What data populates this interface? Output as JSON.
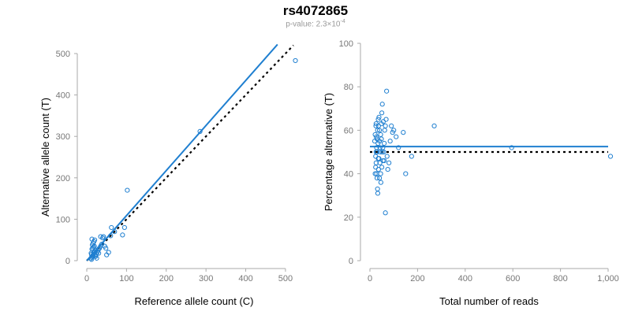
{
  "title": "rs4072865",
  "subtitle": {
    "prefix": "p-value: 2.3×10",
    "exponent": "-4"
  },
  "colors": {
    "points": "#1f7fd0",
    "fit_line": "#1f7fd0",
    "reference_line": "#000000",
    "axis": "#aaaaaa",
    "tick_label": "#777777"
  },
  "chart_data": [
    {
      "type": "scatter",
      "xlabel": "Reference allele count (C)",
      "ylabel": "Alternative allele count (T)",
      "xlim": [
        0,
        520
      ],
      "ylim": [
        0,
        500
      ],
      "xticks": [
        0,
        100,
        200,
        300,
        400,
        500
      ],
      "yticks": [
        0,
        100,
        200,
        300,
        400,
        500
      ],
      "xtick_labels": [
        "0",
        "100",
        "200",
        "300",
        "400",
        "500"
      ],
      "ytick_labels": [
        "0",
        "100",
        "200",
        "300",
        "400",
        "500"
      ],
      "points": [
        [
          10,
          5
        ],
        [
          12,
          8
        ],
        [
          14,
          10
        ],
        [
          15,
          12
        ],
        [
          16,
          14
        ],
        [
          11,
          18
        ],
        [
          18,
          20
        ],
        [
          20,
          22
        ],
        [
          22,
          25
        ],
        [
          13,
          28
        ],
        [
          15,
          30
        ],
        [
          17,
          33
        ],
        [
          19,
          35
        ],
        [
          12,
          15
        ],
        [
          21,
          12
        ],
        [
          24,
          16
        ],
        [
          26,
          20
        ],
        [
          28,
          24
        ],
        [
          30,
          28
        ],
        [
          14,
          38
        ],
        [
          16,
          42
        ],
        [
          18,
          46
        ],
        [
          20,
          50
        ],
        [
          13,
          52
        ],
        [
          22,
          10
        ],
        [
          25,
          6
        ],
        [
          12,
          3
        ],
        [
          30,
          18
        ],
        [
          32,
          30
        ],
        [
          35,
          35
        ],
        [
          38,
          40
        ],
        [
          40,
          55
        ],
        [
          42,
          58
        ],
        [
          35,
          58
        ],
        [
          45,
          35
        ],
        [
          48,
          30
        ],
        [
          50,
          14
        ],
        [
          55,
          20
        ],
        [
          60,
          60
        ],
        [
          62,
          80
        ],
        [
          70,
          70
        ],
        [
          90,
          62
        ],
        [
          95,
          80
        ],
        [
          102,
          170
        ],
        [
          285,
          312
        ],
        [
          525,
          483
        ]
      ],
      "fit_line": {
        "from": [
          0,
          0
        ],
        "to": [
          480,
          522
        ]
      },
      "reference_line": {
        "from": [
          0,
          0
        ],
        "to": [
          520,
          520
        ]
      }
    },
    {
      "type": "scatter",
      "xlabel": "Total number of reads",
      "ylabel": "Percentage alternative (T)",
      "xlim": [
        0,
        1000
      ],
      "ylim": [
        0,
        100
      ],
      "xticks": [
        0,
        200,
        400,
        600,
        800,
        1000
      ],
      "yticks": [
        0,
        20,
        40,
        60,
        80,
        100
      ],
      "xtick_labels": [
        "0",
        "200",
        "400",
        "600",
        "800",
        "1,000"
      ],
      "ytick_labels": [
        "0",
        "20",
        "40",
        "60",
        "80",
        "100"
      ],
      "points": [
        [
          20,
          55
        ],
        [
          22,
          58
        ],
        [
          25,
          62
        ],
        [
          24,
          48
        ],
        [
          26,
          45
        ],
        [
          28,
          52
        ],
        [
          30,
          50
        ],
        [
          32,
          60
        ],
        [
          35,
          65
        ],
        [
          28,
          40
        ],
        [
          30,
          38
        ],
        [
          32,
          33
        ],
        [
          33,
          31
        ],
        [
          36,
          42
        ],
        [
          38,
          47
        ],
        [
          40,
          55
        ],
        [
          42,
          52
        ],
        [
          45,
          58
        ],
        [
          48,
          63
        ],
        [
          50,
          68
        ],
        [
          52,
          72
        ],
        [
          45,
          40
        ],
        [
          50,
          43
        ],
        [
          55,
          46
        ],
        [
          58,
          50
        ],
        [
          60,
          54
        ],
        [
          62,
          60
        ],
        [
          65,
          62
        ],
        [
          68,
          65
        ],
        [
          70,
          78
        ],
        [
          65,
          22
        ],
        [
          72,
          48
        ],
        [
          75,
          42
        ],
        [
          80,
          45
        ],
        [
          85,
          55
        ],
        [
          90,
          62
        ],
        [
          95,
          59
        ],
        [
          100,
          60
        ],
        [
          110,
          57
        ],
        [
          120,
          52
        ],
        [
          140,
          59
        ],
        [
          150,
          40
        ],
        [
          175,
          48
        ],
        [
          270,
          62
        ],
        [
          595,
          52
        ],
        [
          1010,
          48
        ],
        [
          22,
          40
        ],
        [
          24,
          43
        ],
        [
          26,
          50
        ],
        [
          27,
          57
        ],
        [
          34,
          54
        ],
        [
          36,
          62
        ],
        [
          38,
          66
        ],
        [
          40,
          38
        ],
        [
          42,
          45
        ],
        [
          44,
          50
        ],
        [
          46,
          36
        ],
        [
          48,
          56
        ],
        [
          54,
          52
        ],
        [
          56,
          64
        ],
        [
          60,
          46
        ],
        [
          35,
          47
        ],
        [
          40,
          60
        ],
        [
          30,
          56
        ],
        [
          26,
          63
        ],
        [
          52,
          50
        ]
      ],
      "fit_line": {
        "y": 52.5
      },
      "reference_line": {
        "y": 50
      }
    }
  ]
}
